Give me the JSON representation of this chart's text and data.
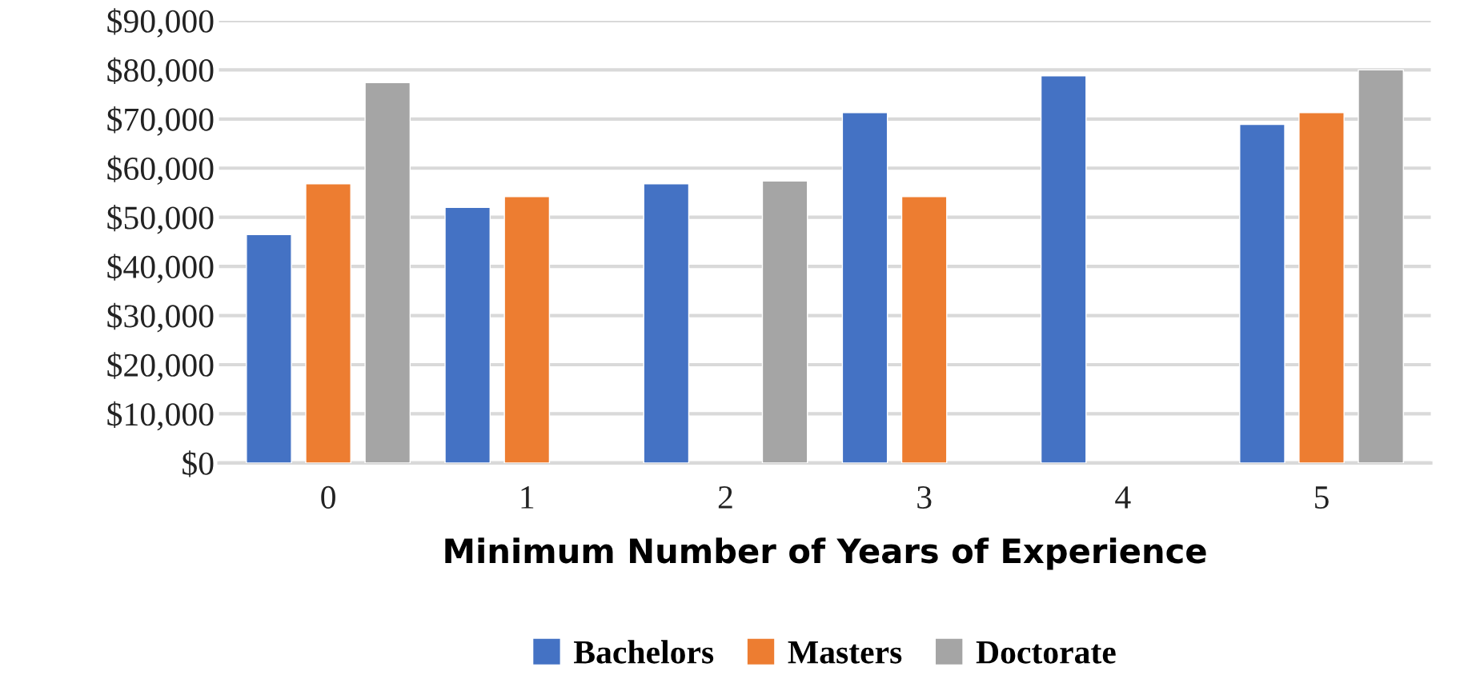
{
  "chart_data": {
    "type": "bar",
    "xlabel": "Minimum Number of Years of Experience",
    "categories": [
      "0",
      "1",
      "2",
      "3",
      "4",
      "5"
    ],
    "series": [
      {
        "name": "Bachelors",
        "color": "#4472c4",
        "values": [
          46500,
          52000,
          56800,
          71300,
          78800,
          68900
        ]
      },
      {
        "name": "Masters",
        "color": "#ed7d31",
        "values": [
          56800,
          54200,
          null,
          54200,
          null,
          71300
        ]
      },
      {
        "name": "Doctorate",
        "color": "#a5a5a5",
        "values": [
          77400,
          null,
          57400,
          null,
          null,
          80000
        ]
      }
    ],
    "ylim": [
      0,
      90000
    ],
    "yticks": [
      {
        "value": 0,
        "label": "$0"
      },
      {
        "value": 10000,
        "label": "$10,000"
      },
      {
        "value": 20000,
        "label": "$20,000"
      },
      {
        "value": 30000,
        "label": "$30,000"
      },
      {
        "value": 40000,
        "label": "$40,000"
      },
      {
        "value": 50000,
        "label": "$50,000"
      },
      {
        "value": 60000,
        "label": "$60,000"
      },
      {
        "value": 70000,
        "label": "$70,000"
      },
      {
        "value": 80000,
        "label": "$80,000"
      },
      {
        "value": 90000,
        "label": "$90,000"
      }
    ],
    "grid": "y",
    "legend": "bottom"
  }
}
